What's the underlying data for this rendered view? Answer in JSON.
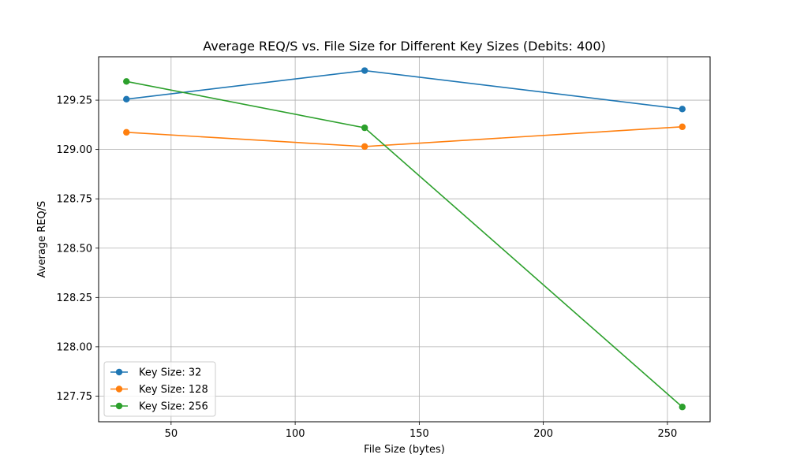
{
  "chart_data": {
    "type": "line",
    "title": "Average REQ/S vs. File Size for Different Key Sizes (Debits: 400)",
    "xlabel": "File Size (bytes)",
    "ylabel": "Average REQ/S",
    "x": [
      32,
      128,
      256
    ],
    "xlim": [
      20.8,
      267.2
    ],
    "ylim": [
      127.62,
      129.47
    ],
    "xticks": [
      50,
      100,
      150,
      200,
      250
    ],
    "xtick_labels": [
      "50",
      "100",
      "150",
      "200",
      "250"
    ],
    "yticks": [
      127.75,
      128.0,
      128.25,
      128.5,
      128.75,
      129.0,
      129.25
    ],
    "ytick_labels": [
      "127.75",
      "128.00",
      "128.25",
      "128.50",
      "128.75",
      "129.00",
      "129.25"
    ],
    "grid": true,
    "legend_position": "lower-left",
    "series": [
      {
        "name": "Key Size: 32",
        "color": "#1f77b4",
        "values": [
          129.255,
          129.4,
          129.205
        ]
      },
      {
        "name": "Key Size: 128",
        "color": "#ff7f0e",
        "values": [
          129.087,
          129.015,
          129.115
        ]
      },
      {
        "name": "Key Size: 256",
        "color": "#2ca02c",
        "values": [
          129.345,
          129.11,
          127.695
        ]
      }
    ]
  }
}
